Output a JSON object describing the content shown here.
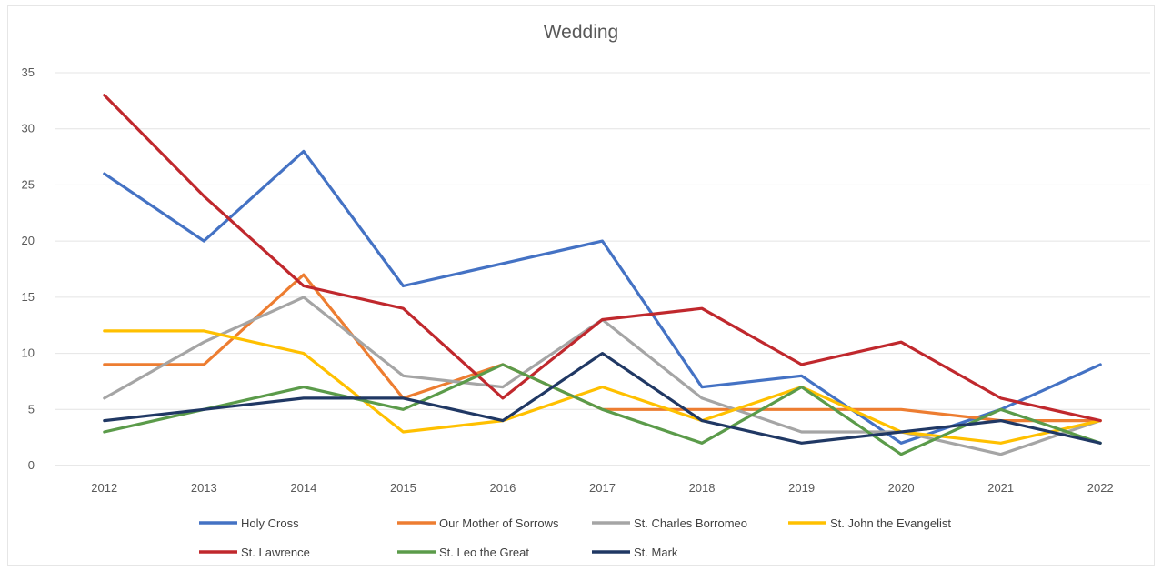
{
  "chart_data": {
    "type": "line",
    "title": "Wedding",
    "xlabel": "",
    "ylabel": "",
    "categories": [
      "2012",
      "2013",
      "2014",
      "2015",
      "2016",
      "2017",
      "2018",
      "2019",
      "2020",
      "2021",
      "2022"
    ],
    "ylim": [
      0,
      35
    ],
    "yticks": [
      0,
      5,
      10,
      15,
      20,
      25,
      30,
      35
    ],
    "grid": true,
    "legend_position": "bottom",
    "series": [
      {
        "name": "Holy Cross",
        "color": "#4472c4",
        "values": [
          26,
          20,
          28,
          16,
          18,
          20,
          7,
          8,
          2,
          5,
          9
        ]
      },
      {
        "name": "Our Mother of Sorrows",
        "color": "#ed7d31",
        "values": [
          9,
          9,
          17,
          6,
          9,
          5,
          5,
          5,
          5,
          4,
          4
        ]
      },
      {
        "name": "St. Charles Borromeo",
        "color": "#a5a5a5",
        "values": [
          6,
          11,
          15,
          8,
          7,
          13,
          6,
          3,
          3,
          1,
          4
        ]
      },
      {
        "name": "St. John the Evangelist",
        "color": "#ffc000",
        "values": [
          12,
          12,
          10,
          3,
          4,
          7,
          4,
          7,
          3,
          2,
          4
        ]
      },
      {
        "name": "St. Lawrence",
        "color": "#c0282d",
        "values": [
          33,
          24,
          16,
          14,
          6,
          13,
          14,
          9,
          11,
          6,
          4
        ]
      },
      {
        "name": "St. Leo the Great",
        "color": "#5b9b4a",
        "values": [
          3,
          5,
          7,
          5,
          9,
          5,
          2,
          7,
          1,
          5,
          2
        ]
      },
      {
        "name": "St. Mark",
        "color": "#203864",
        "values": [
          4,
          5,
          6,
          6,
          4,
          10,
          4,
          2,
          3,
          4,
          2
        ]
      }
    ]
  }
}
